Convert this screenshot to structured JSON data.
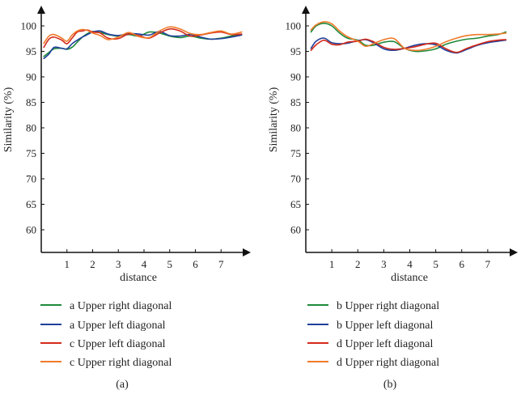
{
  "colors": {
    "green": "#1e8a3a",
    "blue": "#1f3f9a",
    "red": "#d42a1a",
    "orange": "#f07a2a",
    "axis": "#111111"
  },
  "chart_data": [
    {
      "type": "line",
      "panel_label": "(a)",
      "xlabel": "distance",
      "ylabel": "Similarity (%)",
      "xlim": [
        0,
        8
      ],
      "ylim": [
        55,
        104
      ],
      "xticks": [
        1,
        2,
        3,
        4,
        5,
        6,
        7
      ],
      "yticks": [
        60,
        65,
        70,
        75,
        80,
        85,
        90,
        95,
        100
      ],
      "grid": false,
      "legend_position": "below",
      "series": [
        {
          "name": "a Upper right diagonal",
          "color": "#1e8a3a",
          "x": [
            0.1,
            0.3,
            0.5,
            0.8,
            1.0,
            1.2,
            1.4,
            1.6,
            1.8,
            2.0,
            2.3,
            2.6,
            3.0,
            3.4,
            3.8,
            4.2,
            4.6,
            5.0,
            5.4,
            5.8,
            6.2,
            6.6,
            7.0,
            7.4,
            7.8
          ],
          "y": [
            94.0,
            94.8,
            95.5,
            95.6,
            95.4,
            95.8,
            96.8,
            97.8,
            98.5,
            98.9,
            98.7,
            98.3,
            98.0,
            98.3,
            98.0,
            98.8,
            98.6,
            98.0,
            97.7,
            98.0,
            97.6,
            97.4,
            97.6,
            98.0,
            98.3
          ]
        },
        {
          "name": "a Upper left diagonal",
          "color": "#1f3f9a",
          "x": [
            0.1,
            0.3,
            0.5,
            0.8,
            1.0,
            1.2,
            1.4,
            1.6,
            1.8,
            2.0,
            2.3,
            2.6,
            3.0,
            3.4,
            3.8,
            4.2,
            4.6,
            5.0,
            5.4,
            5.8,
            6.2,
            6.6,
            7.0,
            7.4,
            7.8
          ],
          "y": [
            93.6,
            94.5,
            95.8,
            95.6,
            95.5,
            96.5,
            97.2,
            97.8,
            98.3,
            98.8,
            99.0,
            98.4,
            98.1,
            98.5,
            98.4,
            98.2,
            98.9,
            98.1,
            98.0,
            98.3,
            97.8,
            97.4,
            97.5,
            97.8,
            98.2
          ]
        },
        {
          "name": "c Upper left diagonal",
          "color": "#d42a1a",
          "x": [
            0.1,
            0.3,
            0.5,
            0.8,
            1.0,
            1.2,
            1.4,
            1.6,
            1.8,
            2.0,
            2.3,
            2.6,
            3.0,
            3.4,
            3.8,
            4.2,
            4.6,
            5.0,
            5.4,
            5.8,
            6.2,
            6.6,
            7.0,
            7.4,
            7.8
          ],
          "y": [
            95.8,
            97.4,
            97.8,
            97.2,
            96.5,
            97.6,
            98.8,
            99.0,
            99.2,
            98.8,
            98.6,
            97.6,
            97.5,
            98.4,
            98.1,
            97.6,
            98.6,
            99.4,
            99.0,
            98.0,
            98.2,
            98.6,
            98.8,
            98.3,
            98.4
          ]
        },
        {
          "name": "c Upper right diagonal",
          "color": "#f07a2a",
          "x": [
            0.1,
            0.3,
            0.5,
            0.8,
            1.0,
            1.2,
            1.4,
            1.6,
            1.8,
            2.0,
            2.3,
            2.6,
            3.0,
            3.4,
            3.8,
            4.2,
            4.6,
            5.0,
            5.4,
            5.8,
            6.2,
            6.6,
            7.0,
            7.4,
            7.8
          ],
          "y": [
            96.6,
            98.0,
            98.3,
            97.6,
            97.0,
            98.2,
            99.0,
            99.3,
            99.1,
            98.6,
            98.1,
            97.3,
            97.8,
            98.7,
            97.9,
            97.7,
            99.0,
            99.8,
            99.4,
            98.5,
            98.3,
            98.7,
            99.0,
            98.4,
            98.8
          ]
        }
      ]
    },
    {
      "type": "line",
      "panel_label": "(b)",
      "xlabel": "distance",
      "ylabel": "Similarity (%)",
      "xlim": [
        0,
        8
      ],
      "ylim": [
        55,
        104
      ],
      "xticks": [
        1,
        2,
        3,
        4,
        5,
        6,
        7
      ],
      "yticks": [
        60,
        65,
        70,
        75,
        80,
        85,
        90,
        95,
        100
      ],
      "grid": false,
      "legend_position": "below",
      "series": [
        {
          "name": "b Upper right diagonal",
          "color": "#1e8a3a",
          "x": [
            0.2,
            0.4,
            0.7,
            1.0,
            1.3,
            1.6,
            2.0,
            2.3,
            2.6,
            3.0,
            3.4,
            3.8,
            4.2,
            4.6,
            5.0,
            5.4,
            5.8,
            6.2,
            6.6,
            7.0,
            7.4,
            7.7
          ],
          "y": [
            98.8,
            100.0,
            100.5,
            100.0,
            98.6,
            97.6,
            97.2,
            96.2,
            96.2,
            96.8,
            96.9,
            95.6,
            95.0,
            95.1,
            95.5,
            96.4,
            97.0,
            97.4,
            97.6,
            98.0,
            98.3,
            98.8
          ]
        },
        {
          "name": "b Upper left diagonal",
          "color": "#1f3f9a",
          "x": [
            0.2,
            0.4,
            0.7,
            1.0,
            1.3,
            1.6,
            2.0,
            2.3,
            2.6,
            3.0,
            3.4,
            3.8,
            4.2,
            4.6,
            5.0,
            5.4,
            5.8,
            6.2,
            6.6,
            7.0,
            7.4,
            7.7
          ],
          "y": [
            95.6,
            97.0,
            97.6,
            96.7,
            96.5,
            96.6,
            97.1,
            97.3,
            96.7,
            95.5,
            95.2,
            95.6,
            96.2,
            96.5,
            96.3,
            95.2,
            94.7,
            95.4,
            96.2,
            96.7,
            97.0,
            97.2
          ]
        },
        {
          "name": "d Upper left diagonal",
          "color": "#d42a1a",
          "x": [
            0.2,
            0.4,
            0.7,
            1.0,
            1.3,
            1.6,
            2.0,
            2.3,
            2.6,
            3.0,
            3.4,
            3.8,
            4.2,
            4.6,
            5.0,
            5.4,
            5.8,
            6.2,
            6.6,
            7.0,
            7.4,
            7.7
          ],
          "y": [
            95.2,
            96.3,
            97.2,
            96.4,
            96.3,
            96.8,
            97.0,
            97.4,
            96.9,
            95.8,
            95.4,
            95.6,
            95.9,
            96.4,
            96.6,
            95.5,
            94.8,
            95.6,
            96.3,
            96.9,
            97.2,
            97.3
          ]
        },
        {
          "name": "d Upper right diagonal",
          "color": "#f07a2a",
          "x": [
            0.2,
            0.4,
            0.7,
            1.0,
            1.3,
            1.6,
            2.0,
            2.3,
            2.6,
            3.0,
            3.4,
            3.8,
            4.2,
            4.6,
            5.0,
            5.4,
            5.8,
            6.2,
            6.6,
            7.0,
            7.4,
            7.7
          ],
          "y": [
            99.2,
            100.2,
            100.8,
            100.4,
            99.0,
            97.9,
            97.0,
            96.0,
            96.5,
            97.3,
            97.5,
            95.6,
            95.2,
            95.4,
            96.0,
            96.9,
            97.6,
            98.1,
            98.3,
            98.3,
            98.4,
            98.6
          ]
        }
      ]
    }
  ]
}
